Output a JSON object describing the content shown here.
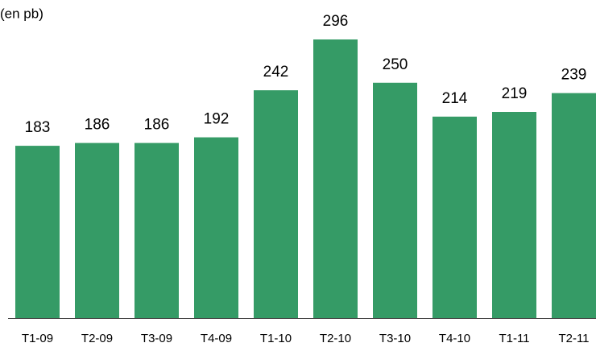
{
  "chart_data": {
    "type": "bar",
    "subtitle": "(en pb)",
    "categories": [
      "T1-09",
      "T2-09",
      "T3-09",
      "T4-09",
      "T1-10",
      "T2-10",
      "T3-10",
      "T4-10",
      "T1-11",
      "T2-11"
    ],
    "values": [
      183,
      186,
      186,
      192,
      242,
      296,
      250,
      214,
      219,
      239
    ],
    "color": "#359b66"
  }
}
